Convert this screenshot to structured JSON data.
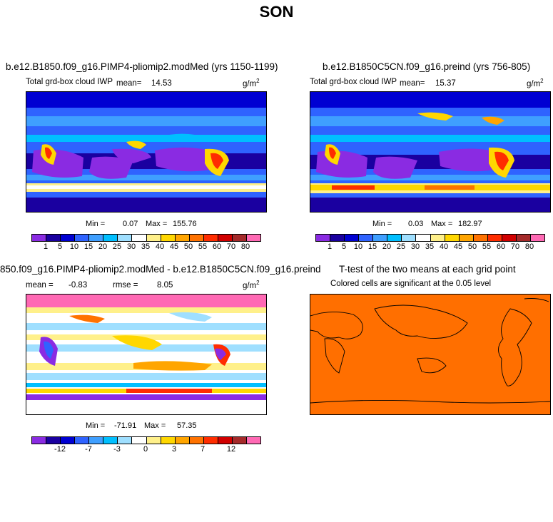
{
  "page_title": "SON",
  "colors": {
    "land_outline": "#000000",
    "ttest_fill": "#ff6f00"
  },
  "panels": [
    {
      "title": "b.e12.B1850.f09_g16.PIMP4-pliomip2.modMed (yrs 1150-1199)",
      "variable": "Total grd-box cloud IWP",
      "mean_label": "mean=",
      "mean_value": "14.53",
      "units": "g/m",
      "units_exp": "2",
      "min_label": "Min =",
      "min_value": "0.07",
      "max_label": "Max =",
      "max_value": "155.76",
      "colorbar": {
        "colors": [
          "#8a2be2",
          "#1a00a0",
          "#0000d2",
          "#2f63ff",
          "#3f9fff",
          "#00bfff",
          "#9fdfff",
          "#ffffff",
          "#fff08a",
          "#ffd700",
          "#ffa500",
          "#ff7200",
          "#ff2d00",
          "#d10000",
          "#a52a2a",
          "#ff69b4"
        ],
        "tick_labels": [
          "1",
          "5",
          "10",
          "15",
          "20",
          "25",
          "30",
          "35",
          "40",
          "45",
          "50",
          "55",
          "60",
          "70",
          "80"
        ]
      }
    },
    {
      "title": "b.e12.B1850C5CN.f09_g16.preind (yrs 756-805)",
      "variable": "Total grd-box cloud IWP",
      "mean_label": "mean=",
      "mean_value": "15.37",
      "units": "g/m",
      "units_exp": "2",
      "min_label": "Min =",
      "min_value": "0.03",
      "max_label": "Max =",
      "max_value": "182.97",
      "colorbar": {
        "colors": [
          "#8a2be2",
          "#1a00a0",
          "#0000d2",
          "#2f63ff",
          "#3f9fff",
          "#00bfff",
          "#9fdfff",
          "#ffffff",
          "#fff08a",
          "#ffd700",
          "#ffa500",
          "#ff7200",
          "#ff2d00",
          "#d10000",
          "#a52a2a",
          "#ff69b4"
        ],
        "tick_labels": [
          "1",
          "5",
          "10",
          "15",
          "20",
          "25",
          "30",
          "35",
          "40",
          "45",
          "50",
          "55",
          "60",
          "70",
          "80"
        ]
      }
    },
    {
      "title": "850.f09_g16.PIMP4-pliomip2.modMed - b.e12.B1850C5CN.f09_g16.preind",
      "mean_label": "mean =",
      "mean_value": "-0.83",
      "rmse_label": "rmse =",
      "rmse_value": "8.05",
      "units": "g/m",
      "units_exp": "2",
      "min_label": "Min =",
      "min_value": "-71.91",
      "max_label": "Max =",
      "max_value": "57.35",
      "colorbar": {
        "colors": [
          "#8a2be2",
          "#1a00a0",
          "#0000d2",
          "#2f63ff",
          "#3f9fff",
          "#00bfff",
          "#9fdfff",
          "#ffffff",
          "#fff08a",
          "#ffd700",
          "#ffa500",
          "#ff7200",
          "#ff2d00",
          "#d10000",
          "#a52a2a",
          "#ff69b4"
        ],
        "tick_labels": [
          "-12",
          "-7",
          "-3",
          "0",
          "3",
          "7",
          "12"
        ]
      }
    },
    {
      "title": "T-test of the two means at each grid point",
      "subtitle": "Colored cells are significant at the 0.05 level"
    }
  ]
}
